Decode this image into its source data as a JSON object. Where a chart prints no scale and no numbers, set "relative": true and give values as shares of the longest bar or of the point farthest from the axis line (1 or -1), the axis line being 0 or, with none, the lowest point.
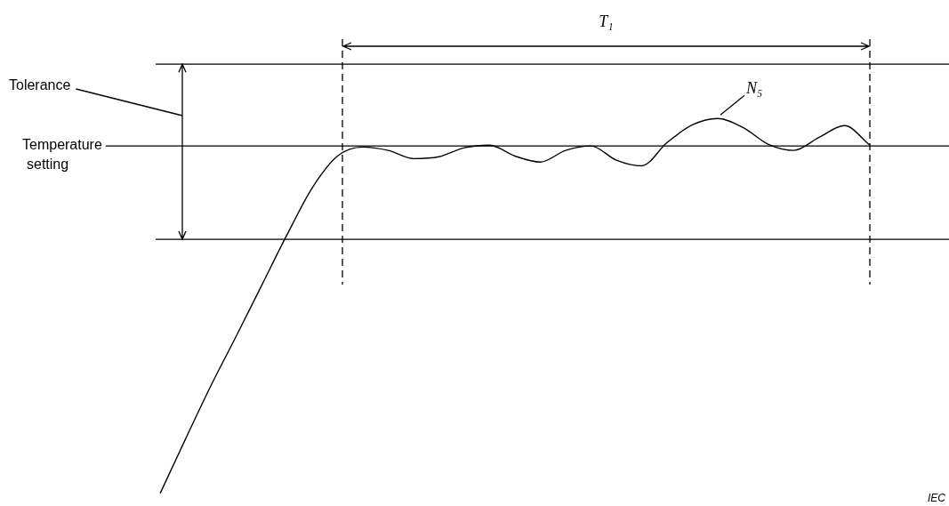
{
  "chart_data": {
    "type": "line",
    "relative": true,
    "legend": false,
    "marker": "none",
    "line_style": "solid",
    "categories": [
      null,
      null,
      null,
      null,
      null,
      null,
      null,
      null,
      null,
      null,
      null,
      null,
      null,
      null,
      null,
      null,
      null,
      null,
      null,
      null,
      null,
      null,
      null,
      null,
      null,
      null,
      null,
      null,
      null
    ],
    "series": [
      {
        "color": "#000000",
        "values": [
          0,
          0.145,
          0.287,
          0.419,
          0.554,
          0.689,
          0.815,
          0.9,
          0.924,
          0.915,
          0.893,
          0.898,
          0.922,
          0.929,
          0.9,
          0.884,
          0.915,
          0.927,
          0.889,
          0.874,
          0.936,
          0.983,
          1,
          0.976,
          0.931,
          0.915,
          0.95,
          0.981,
          0.929
        ]
      }
    ],
    "ref_lines": [
      {
        "axis": "y",
        "value": 1.145,
        "color": "#000000"
      },
      {
        "axis": "y",
        "value": 0.927,
        "label": "Temperature setting",
        "color": "#000000"
      },
      {
        "axis": "y",
        "value": 0.678,
        "color": "#000000"
      }
    ],
    "annotations": [
      "Tolerance",
      "T₁",
      "N₅",
      "IEC"
    ]
  }
}
